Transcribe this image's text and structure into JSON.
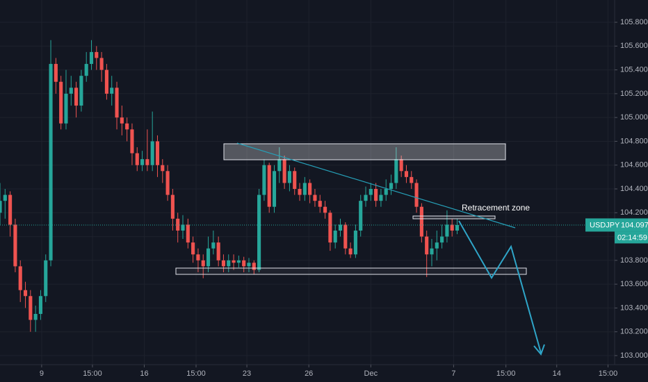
{
  "chart_data": {
    "type": "candlestick",
    "symbol": "USDJPY",
    "last_price": 104.097,
    "countdown": "02:14:59",
    "annotation": "Retracement zone",
    "up_color": "#26a69a",
    "down_color": "#ef5350",
    "grid": true,
    "ylim": [
      102.924,
      105.987
    ],
    "yticks": [
      {
        "value": 103.0,
        "label": "103.000"
      },
      {
        "value": 103.2,
        "label": "103.200"
      },
      {
        "value": 103.4,
        "label": "103.400"
      },
      {
        "value": 103.6,
        "label": "103.600"
      },
      {
        "value": 103.8,
        "label": "103.800"
      },
      {
        "value": 104.0,
        "label": "104.000"
      },
      {
        "value": 104.2,
        "label": "104.200"
      },
      {
        "value": 104.4,
        "label": "104.400"
      },
      {
        "value": 104.6,
        "label": "104.600"
      },
      {
        "value": 104.8,
        "label": "104.800"
      },
      {
        "value": 105.0,
        "label": "105.000"
      },
      {
        "value": 105.2,
        "label": "105.200"
      },
      {
        "value": 105.4,
        "label": "105.400"
      },
      {
        "value": 105.6,
        "label": "105.600"
      },
      {
        "value": 105.8,
        "label": "105.800"
      }
    ],
    "xlim": [
      0,
      121
    ],
    "xticks": [
      {
        "value": 8.2,
        "label": "9"
      },
      {
        "value": 18.2,
        "label": "15:00"
      },
      {
        "value": 28.4,
        "label": "16"
      },
      {
        "value": 38.6,
        "label": "15:00"
      },
      {
        "value": 48.6,
        "label": "23"
      },
      {
        "value": 60.8,
        "label": "26"
      },
      {
        "value": 73,
        "label": "Dec"
      },
      {
        "value": 89.3,
        "label": "7"
      },
      {
        "value": 99.6,
        "label": "15:00"
      },
      {
        "value": 109.6,
        "label": "14"
      },
      {
        "value": 119.7,
        "label": "15:00"
      }
    ],
    "series": {
      "open": [
        104.2,
        104.3,
        104.35,
        104.1,
        103.75,
        103.55,
        103.5,
        103.3,
        103.35,
        103.5,
        103.8,
        105.45,
        105.3,
        104.95,
        105.2,
        105.25,
        105.1,
        105.35,
        105.45,
        105.55,
        105.5,
        105.4,
        105.2,
        105.25,
        105.0,
        104.95,
        104.9,
        104.7,
        104.6,
        104.65,
        104.6,
        104.8,
        104.6,
        104.55,
        104.35,
        104.15,
        104.05,
        104.1,
        103.95,
        103.85,
        103.8,
        103.75,
        103.9,
        103.95,
        103.8,
        103.75,
        103.8,
        103.78,
        103.8,
        103.75,
        103.78,
        103.72,
        104.35,
        104.6,
        104.25,
        104.55,
        104.65,
        104.45,
        104.55,
        104.4,
        104.35,
        104.45,
        104.35,
        104.3,
        104.25,
        104.2,
        103.95,
        104.05,
        104.1,
        103.9,
        103.85,
        104.05,
        104.3,
        104.35,
        104.4,
        104.3,
        104.35,
        104.4,
        104.45,
        104.65,
        104.55,
        104.5,
        104.45,
        104.25,
        104.0,
        103.85,
        103.9,
        103.95,
        104.0,
        104.1,
        104.05
      ],
      "high": [
        104.45,
        104.4,
        104.38,
        104.15,
        103.8,
        103.62,
        103.55,
        103.42,
        103.55,
        103.85,
        105.65,
        105.5,
        105.35,
        105.4,
        105.35,
        105.3,
        105.4,
        105.55,
        105.65,
        105.6,
        105.55,
        105.45,
        105.35,
        105.3,
        105.1,
        105.0,
        104.95,
        104.75,
        104.72,
        104.9,
        105.05,
        104.85,
        104.65,
        104.6,
        104.4,
        104.2,
        104.18,
        104.15,
        104.0,
        103.9,
        103.85,
        104.0,
        104.05,
        104.0,
        103.85,
        103.85,
        103.85,
        103.84,
        103.83,
        103.82,
        103.8,
        104.4,
        104.65,
        104.62,
        104.6,
        104.75,
        104.68,
        104.6,
        104.58,
        104.45,
        104.5,
        104.48,
        104.4,
        104.35,
        104.3,
        104.22,
        104.1,
        104.15,
        104.12,
        103.95,
        104.1,
        104.35,
        104.42,
        104.45,
        104.45,
        104.4,
        104.48,
        104.52,
        104.75,
        104.68,
        104.6,
        104.55,
        104.48,
        104.28,
        104.05,
        103.98,
        104.05,
        104.1,
        104.22,
        104.15,
        104.15
      ],
      "low": [
        104.1,
        104.15,
        104.0,
        103.7,
        103.45,
        103.4,
        103.2,
        103.2,
        103.3,
        103.45,
        103.75,
        105.2,
        104.9,
        104.9,
        105.1,
        105.0,
        105.05,
        105.3,
        105.4,
        105.4,
        105.3,
        105.15,
        105.1,
        104.9,
        104.85,
        104.8,
        104.6,
        104.55,
        104.55,
        104.55,
        104.55,
        104.5,
        104.45,
        104.3,
        104.05,
        103.95,
        103.98,
        103.9,
        103.78,
        103.7,
        103.65,
        103.7,
        103.85,
        103.75,
        103.7,
        103.7,
        103.72,
        103.74,
        103.7,
        103.7,
        103.68,
        103.7,
        104.3,
        104.2,
        104.2,
        104.45,
        104.4,
        104.38,
        104.35,
        104.3,
        104.3,
        104.28,
        104.25,
        104.2,
        104.15,
        103.88,
        103.9,
        104.0,
        103.85,
        103.82,
        103.82,
        104.0,
        104.25,
        104.3,
        104.25,
        104.25,
        104.3,
        104.35,
        104.4,
        104.5,
        104.45,
        104.4,
        104.2,
        103.95,
        103.66,
        103.75,
        103.8,
        103.9,
        103.95,
        104.0,
        104.02
      ],
      "close": [
        104.3,
        104.35,
        104.1,
        103.75,
        103.55,
        103.5,
        103.3,
        103.35,
        103.5,
        103.8,
        105.45,
        105.3,
        104.95,
        105.2,
        105.25,
        105.1,
        105.35,
        105.45,
        105.55,
        105.5,
        105.4,
        105.2,
        105.25,
        105.0,
        104.95,
        104.9,
        104.7,
        104.6,
        104.65,
        104.6,
        104.8,
        104.6,
        104.55,
        104.35,
        104.15,
        104.05,
        104.1,
        103.95,
        103.85,
        103.8,
        103.75,
        103.9,
        103.95,
        103.8,
        103.75,
        103.8,
        103.78,
        103.8,
        103.75,
        103.78,
        103.72,
        104.35,
        104.6,
        104.25,
        104.55,
        104.65,
        104.45,
        104.55,
        104.4,
        104.35,
        104.45,
        104.35,
        104.3,
        104.25,
        104.2,
        103.95,
        104.05,
        104.1,
        103.9,
        103.85,
        104.05,
        104.3,
        104.35,
        104.4,
        104.3,
        104.35,
        104.4,
        104.45,
        104.65,
        104.55,
        104.5,
        104.45,
        104.25,
        104.0,
        103.85,
        103.9,
        103.95,
        104.0,
        104.1,
        104.05,
        104.097
      ]
    }
  }
}
